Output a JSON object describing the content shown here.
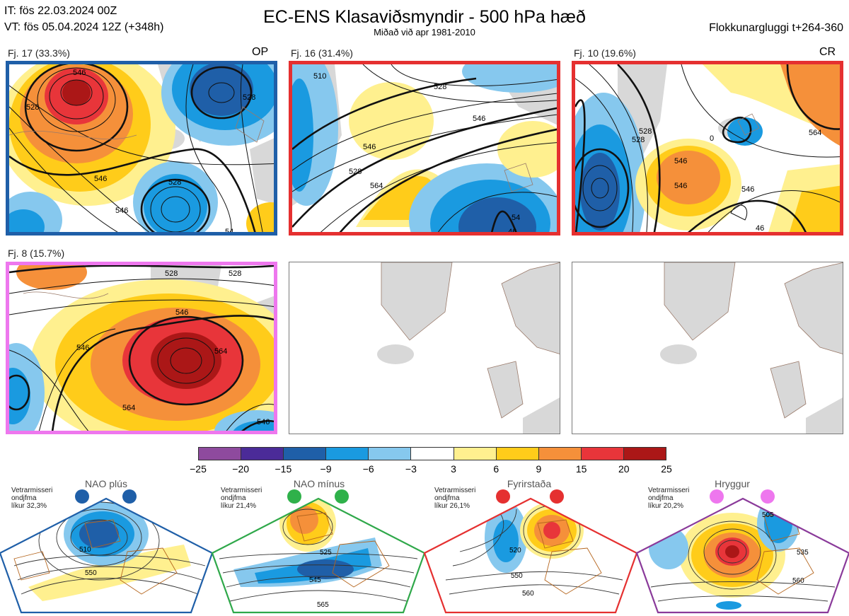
{
  "header": {
    "it": "IT: fös 22.03.2024 00Z",
    "vt": "VT: fös 05.04.2024 12Z  (+348h)",
    "title": "EC-ENS Klasaviðsmyndir - 500 hPa hæð",
    "subtitle": "Miðað við apr 1981-2010",
    "window": "Flokkunargluggi t+264-360"
  },
  "clusters": [
    {
      "label": "Fj. 17 (33.3%)",
      "tag": "OP",
      "border_color": "#1f5fa8",
      "contours": [
        "528",
        "546",
        "528",
        "546",
        "528",
        "546",
        "54"
      ]
    },
    {
      "label": "Fj. 16 (31.4%)",
      "tag": "",
      "border_color": "#e53030",
      "contours": [
        "510",
        "528",
        "546",
        "528",
        "546",
        "564",
        "46",
        "54"
      ]
    },
    {
      "label": "Fj. 10 (19.6%)",
      "tag": "CR",
      "border_color": "#e53030",
      "contours": [
        "528",
        "546",
        "528",
        "546",
        "0",
        "546",
        "564",
        "46",
        "528"
      ]
    },
    {
      "label": "Fj. 8 (15.7%)",
      "tag": "",
      "border_color": "#ee77ee",
      "contours": [
        "528",
        "510",
        "528",
        "546",
        "546",
        "564",
        "564",
        "546"
      ]
    }
  ],
  "legend": {
    "colors": [
      "#8e4a9e",
      "#4b2b98",
      "#1f5fa8",
      "#1a9ae0",
      "#86c8ee",
      "#ffffff",
      "#fff08f",
      "#ffcc1a",
      "#f5903a",
      "#e8353a",
      "#ab1717"
    ],
    "ticks": [
      "−25",
      "−20",
      "−15",
      "−9",
      "−6",
      "−3",
      "3",
      "6",
      "9",
      "15",
      "20",
      "25"
    ]
  },
  "regimes": [
    {
      "name": "NAO plús",
      "season": "Vetrarmisseri",
      "mean": "ondjfma",
      "prob": "líkur 32,3%",
      "color": "#1f5fa8",
      "dot_color": "#1f5fa8",
      "contours": [
        "510",
        "550"
      ]
    },
    {
      "name": "NAO mínus",
      "season": "Vetrarmisseri",
      "mean": "ondjfma",
      "prob": "líkur 21,4%",
      "color": "#2fa84a",
      "dot_color": "#2fb14a",
      "contours": [
        "525",
        "545",
        "565"
      ]
    },
    {
      "name": "Fyrirstaða",
      "season": "Vetrarmisseri",
      "mean": "ondjfma",
      "prob": "líkur 26,1%",
      "color": "#e53030",
      "dot_color": "#e53030",
      "contours": [
        "520",
        "550",
        "560"
      ]
    },
    {
      "name": "Hryggur",
      "season": "Vetrarmisseri",
      "mean": "ondjfma",
      "prob": "líkur 20,2%",
      "color": "#8a3a9a",
      "dot_color": "#ee77ee",
      "contours": [
        "505",
        "535",
        "560"
      ]
    }
  ]
}
